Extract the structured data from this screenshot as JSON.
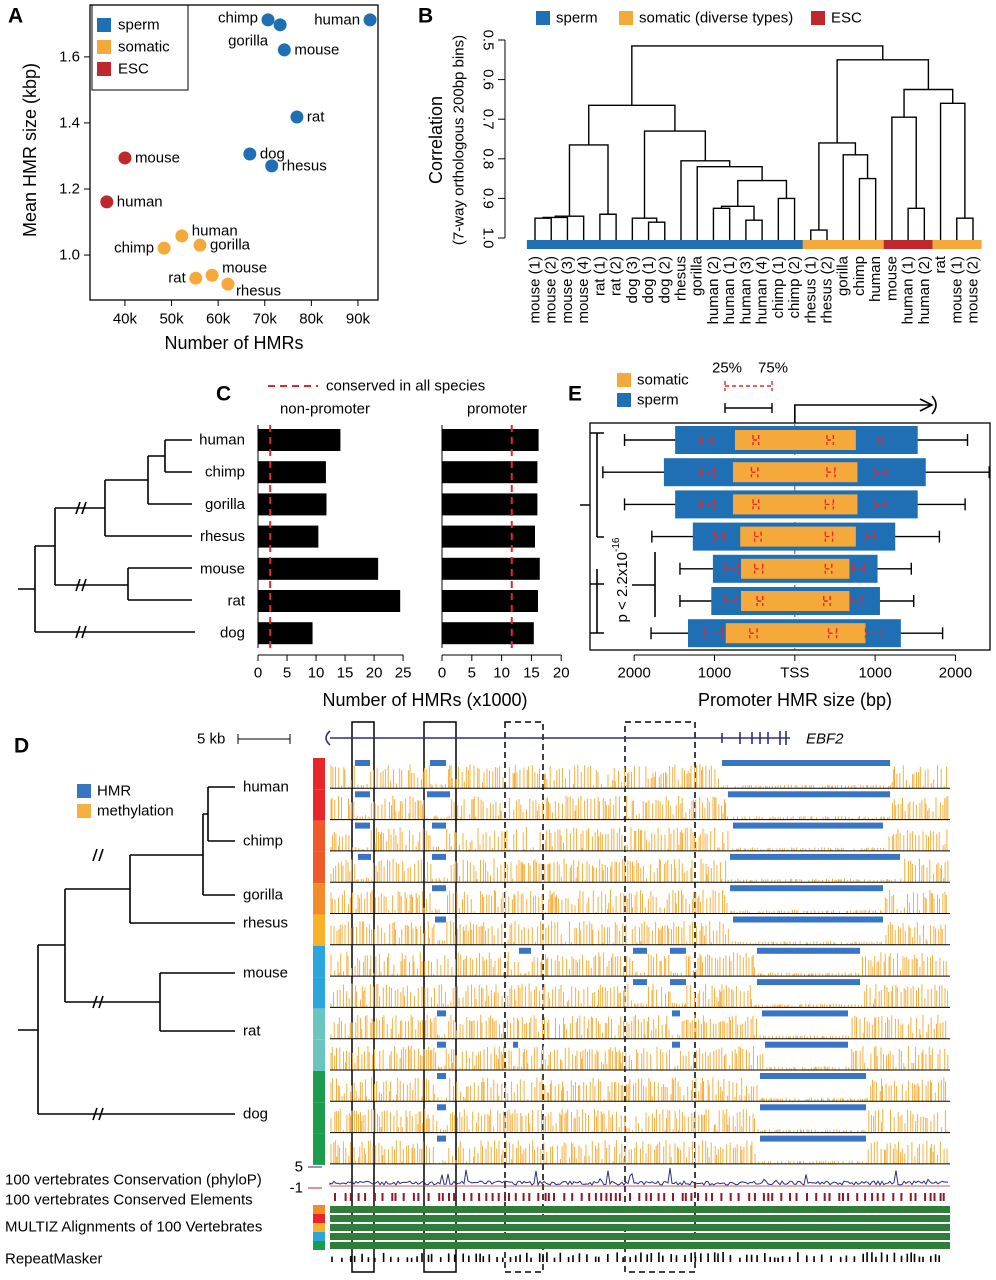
{
  "panel_labels": {
    "a": "A",
    "b": "B",
    "c": "C",
    "d": "D",
    "e": "E"
  },
  "chart_data": [
    {
      "type": "scatter",
      "xlabel": "Number of HMRs",
      "ylabel": "Mean HMR size (kbp)",
      "xlim": [
        32500,
        94300
      ],
      "ylim": [
        0.864,
        1.757
      ],
      "xticks": [
        {
          "value": 40000,
          "label": "40k"
        },
        {
          "value": 50000,
          "label": "50k"
        },
        {
          "value": 60000,
          "label": "60k"
        },
        {
          "value": 70000,
          "label": "70k"
        },
        {
          "value": 80000,
          "label": "80k"
        },
        {
          "value": 90000,
          "label": "90k"
        }
      ],
      "yticks": [
        {
          "value": 1,
          "label": "1.0"
        },
        1.2,
        1.4,
        1.6
      ],
      "legend": "upper left",
      "series": [
        {
          "name": "sperm",
          "color": "#1f6fb5",
          "labels": [
            "chimp",
            "gorilla",
            "human",
            "mouse",
            "rat",
            "dog",
            "rhesus"
          ],
          "x": [
            70700,
            73300,
            92600,
            74200,
            76900,
            66800,
            71500
          ],
          "y": [
            1.712,
            1.697,
            1.712,
            1.621,
            1.418,
            1.306,
            1.27
          ]
        },
        {
          "name": "somatic",
          "color": "#f5a93b",
          "labels": [
            "human",
            "chimp",
            "gorilla",
            "rat",
            "mouse",
            "rhesus"
          ],
          "x": [
            52200,
            48400,
            56100,
            55200,
            58700,
            62100
          ],
          "y": [
            1.058,
            1.021,
            1.03,
            0.93,
            0.939,
            0.912
          ]
        },
        {
          "name": "ESC",
          "color": "#c0272d",
          "labels": [
            "mouse",
            "human"
          ],
          "x": [
            40000,
            36100
          ],
          "y": [
            1.294,
            1.161
          ]
        }
      ]
    },
    {
      "type": "dendrogram",
      "ylabel": "Correlation",
      "ylabel_sub": "(7-way orthologous 200bp bins)",
      "ylim": [
        1,
        0.5
      ],
      "yticks": [
        0.5,
        0.6,
        0.7,
        0.8,
        0.9,
        {
          "value": 1,
          "label": "1.0"
        }
      ],
      "groups": [
        {
          "name": "sperm",
          "color": "#1f6fb5"
        },
        {
          "name": "somatic (diverse types)",
          "color": "#f5a93b"
        },
        {
          "name": "ESC",
          "color": "#c0272d"
        }
      ],
      "leaves": [
        "mouse (1)",
        "mouse (2)",
        "mouse (3)",
        "mouse (4)",
        "rat (1)",
        "rat (2)",
        "dog (3)",
        "dog (1)",
        "dog (2)",
        "rhesus",
        "gorilla",
        "human (2)",
        "human (1)",
        "human (3)",
        "human (4)",
        "chimp (1)",
        "chimp (2)",
        "rhesus (1)",
        "rhesus (2)",
        "gorilla",
        "chimp",
        "human",
        "mouse",
        "human (1)",
        "human (2)",
        "rat",
        "mouse (1)",
        "mouse (2)"
      ],
      "leaf_group": [
        0,
        0,
        0,
        0,
        0,
        0,
        0,
        0,
        0,
        0,
        0,
        0,
        0,
        0,
        0,
        0,
        0,
        1,
        1,
        1,
        1,
        1,
        2,
        2,
        2,
        1,
        1,
        1
      ],
      "merges": [
        [
          0,
          1,
          0.95
        ],
        [
          28,
          2,
          0.948
        ],
        [
          29,
          3,
          0.945
        ],
        [
          4,
          5,
          0.94
        ],
        [
          30,
          31,
          0.765
        ],
        [
          7,
          8,
          0.96
        ],
        [
          6,
          33,
          0.95
        ],
        [
          11,
          12,
          0.925
        ],
        [
          13,
          14,
          0.955
        ],
        [
          35,
          36,
          0.92
        ],
        [
          15,
          16,
          0.9
        ],
        [
          37,
          38,
          0.855
        ],
        [
          10,
          39,
          0.82
        ],
        [
          9,
          40,
          0.805
        ],
        [
          34,
          41,
          0.73
        ],
        [
          32,
          42,
          0.665
        ],
        [
          17,
          18,
          0.98
        ],
        [
          20,
          21,
          0.85
        ],
        [
          19,
          45,
          0.79
        ],
        [
          44,
          46,
          0.76
        ],
        [
          23,
          24,
          0.925
        ],
        [
          22,
          48,
          0.695
        ],
        [
          26,
          27,
          0.95
        ],
        [
          25,
          50,
          0.66
        ],
        [
          49,
          51,
          0.625
        ],
        [
          47,
          52,
          0.55
        ],
        [
          43,
          53,
          0.515
        ]
      ]
    },
    {
      "type": "hbar",
      "xlabel": "Number of HMRs (x1000)",
      "legend": "conserved in all species",
      "bar_color": "#000000",
      "line_color": "#e8262a",
      "categories": [
        "human",
        "chimp",
        "gorilla",
        "rhesus",
        "mouse",
        "rat",
        "dog"
      ],
      "panels": [
        {
          "title": "non-promoter",
          "values": [
            14.2,
            11.7,
            11.8,
            10.4,
            20.7,
            24.5,
            9.4
          ],
          "conserved": 2.1,
          "xlim": [
            0,
            25.5
          ],
          "xticks": [
            0,
            5,
            10,
            15,
            20,
            25
          ]
        },
        {
          "title": "promoter",
          "values": [
            16.2,
            16,
            16,
            15.6,
            16.4,
            16.1,
            15.4
          ],
          "conserved": 11.7,
          "xlim": [
            0,
            20.8
          ],
          "xticks": [
            0,
            5,
            10,
            15,
            20
          ]
        }
      ]
    },
    {
      "type": "range",
      "xlabel": "Promoter HMR size (bp)",
      "xlim": [
        -2550,
        2430
      ],
      "xticks": [
        {
          "value": -2000,
          "label": "2000"
        },
        {
          "value": -1000,
          "label": "1000"
        },
        {
          "value": 0,
          "label": "TSS"
        },
        1000,
        2000
      ],
      "quantile_labels": [
        "25%",
        "75%"
      ],
      "ci_color": "#e8262a",
      "annotation": "p < 2.2x10",
      "annotation_exp": "-16",
      "series": [
        {
          "name": "somatic",
          "color": "#f5a93b",
          "box": [
            [
              -745,
              760
            ],
            [
              -770,
              780
            ],
            [
              -770,
              780
            ],
            [
              -680,
              760
            ],
            [
              -670,
              680
            ],
            [
              -670,
              680
            ],
            [
              -860,
              880
            ]
          ],
          "ci_low": [
            [
              -520,
              -450
            ],
            [
              -540,
              -460
            ],
            [
              -520,
              -450
            ],
            [
              -500,
              -420
            ],
            [
              -500,
              -400
            ],
            [
              -470,
              -400
            ],
            [
              -560,
              -470
            ]
          ],
          "ci_high": [
            [
              400,
              480
            ],
            [
              400,
              500
            ],
            [
              380,
              480
            ],
            [
              380,
              470
            ],
            [
              380,
              460
            ],
            [
              360,
              440
            ],
            [
              420,
              520
            ]
          ]
        },
        {
          "name": "sperm",
          "color": "#1f6fb5",
          "box": [
            [
              -1490,
              1530
            ],
            [
              -1630,
              1630
            ],
            [
              -1490,
              1530
            ],
            [
              -1270,
              1250
            ],
            [
              -1020,
              1030
            ],
            [
              -1040,
              1060
            ],
            [
              -1330,
              1320
            ]
          ],
          "whisker": [
            [
              -2120,
              2150
            ],
            [
              -2390,
              2420
            ],
            [
              -2120,
              2120
            ],
            [
              -1780,
              1800
            ],
            [
              -1430,
              1450
            ],
            [
              -1430,
              1480
            ],
            [
              -1790,
              1840
            ]
          ],
          "ci_low": [
            [
              -1180,
              -1030
            ],
            [
              -1180,
              -1000
            ],
            [
              -1180,
              -1000
            ],
            [
              -1000,
              -870
            ],
            [
              -870,
              -700
            ],
            [
              -870,
              -720
            ],
            [
              -1130,
              -900
            ]
          ],
          "ci_high": [
            [
              1030,
              1100
            ],
            [
              1000,
              1150
            ],
            [
              1000,
              1130
            ],
            [
              880,
              1000
            ],
            [
              720,
              870
            ],
            [
              700,
              850
            ],
            [
              880,
              1080
            ]
          ]
        }
      ]
    }
  ],
  "panel_d": {
    "scale": "5 kb",
    "gene": "EBF2",
    "legend": [
      {
        "name": "HMR",
        "color": "#3a75c4"
      },
      {
        "name": "methylation",
        "color": "#f5b041"
      }
    ],
    "species": [
      "human",
      "chimp",
      "gorilla",
      "rhesus",
      "mouse",
      "rat",
      "dog"
    ],
    "tracks": [
      "100 vertebrates Conservation (phyloP)",
      "100 vertebrates Conserved Elements",
      "MULTIZ Alignments of 100 Vertebrates",
      "RepeatMasker"
    ],
    "phylop_range": [
      5,
      -1
    ]
  }
}
